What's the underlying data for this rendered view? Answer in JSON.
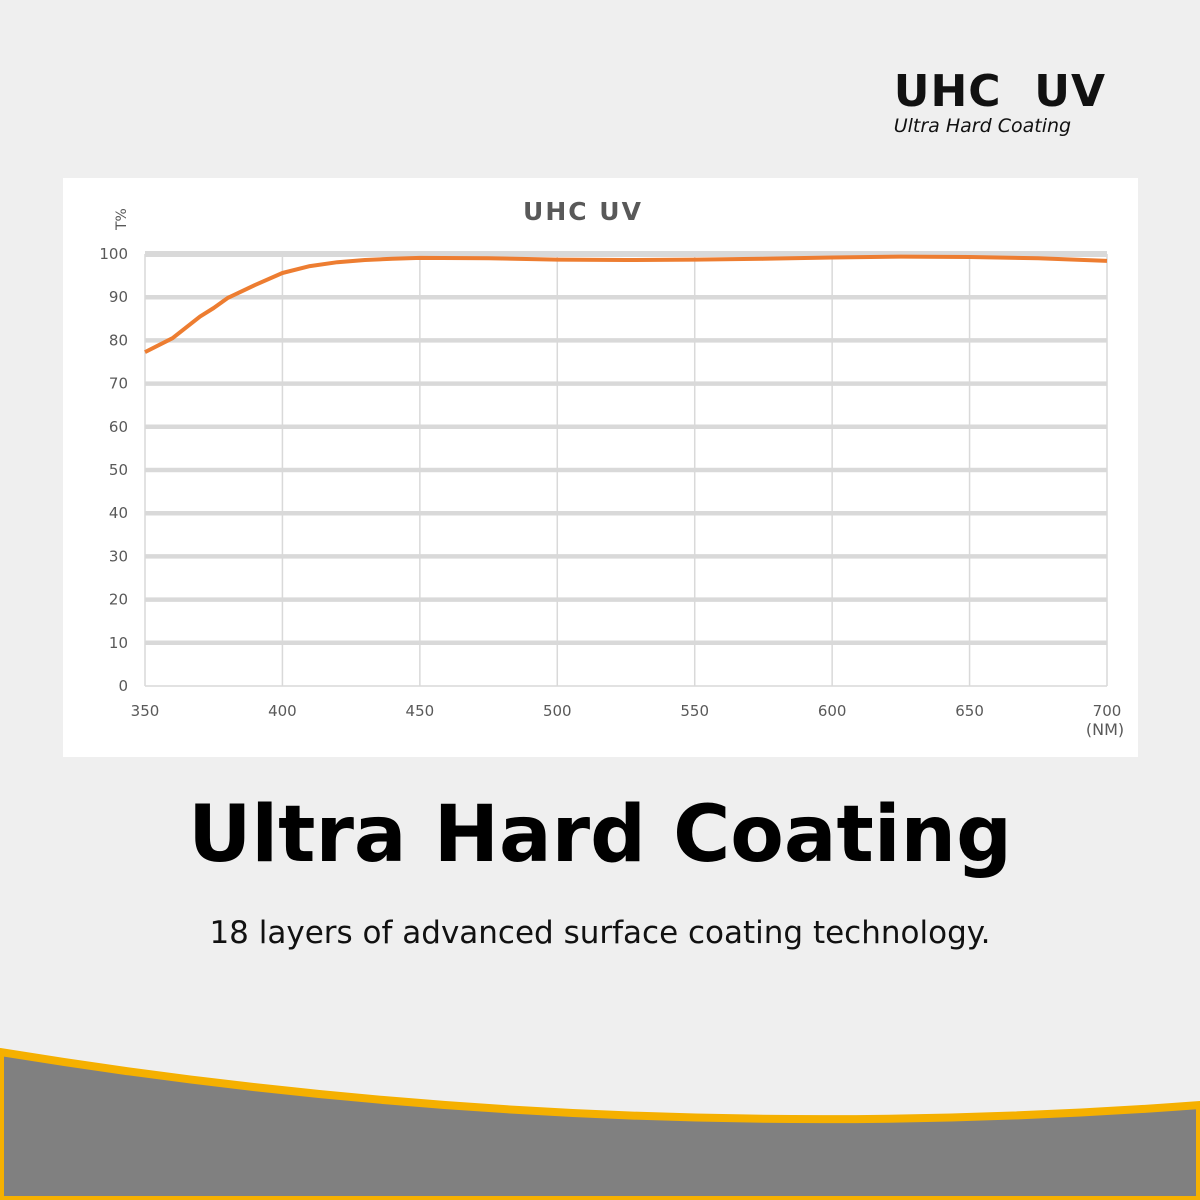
{
  "brand": {
    "title": "UHC  UV",
    "subtitle": "Ultra Hard Coating"
  },
  "headline": "Ultra Hard Coating",
  "subheadline": "18 layers of advanced surface coating technology.",
  "chart_data": {
    "type": "line",
    "title": "UHC UV",
    "ylabel": "T%",
    "xlabel": "(NM)",
    "xlim": [
      350,
      700
    ],
    "ylim": [
      0,
      100
    ],
    "xticks": [
      350,
      400,
      450,
      500,
      550,
      600,
      650,
      700
    ],
    "yticks": [
      0,
      10,
      20,
      30,
      40,
      50,
      60,
      70,
      80,
      90,
      100
    ],
    "grid": true,
    "line_color": "#ed7d31",
    "series": [
      {
        "x": [
          350,
          360,
          370,
          375,
          380,
          390,
          400,
          410,
          420,
          430,
          440,
          450,
          475,
          500,
          525,
          550,
          575,
          600,
          625,
          650,
          675,
          700
        ],
        "y": [
          77.3,
          80.5,
          85.5,
          87.5,
          89.8,
          92.8,
          95.6,
          97.2,
          98.1,
          98.6,
          98.9,
          99.1,
          99.0,
          98.7,
          98.6,
          98.7,
          98.9,
          99.2,
          99.4,
          99.3,
          99.0,
          98.4
        ]
      }
    ]
  },
  "colors": {
    "background": "#efefef",
    "wave_fill": "#808080",
    "wave_stroke": "#f5b000"
  }
}
